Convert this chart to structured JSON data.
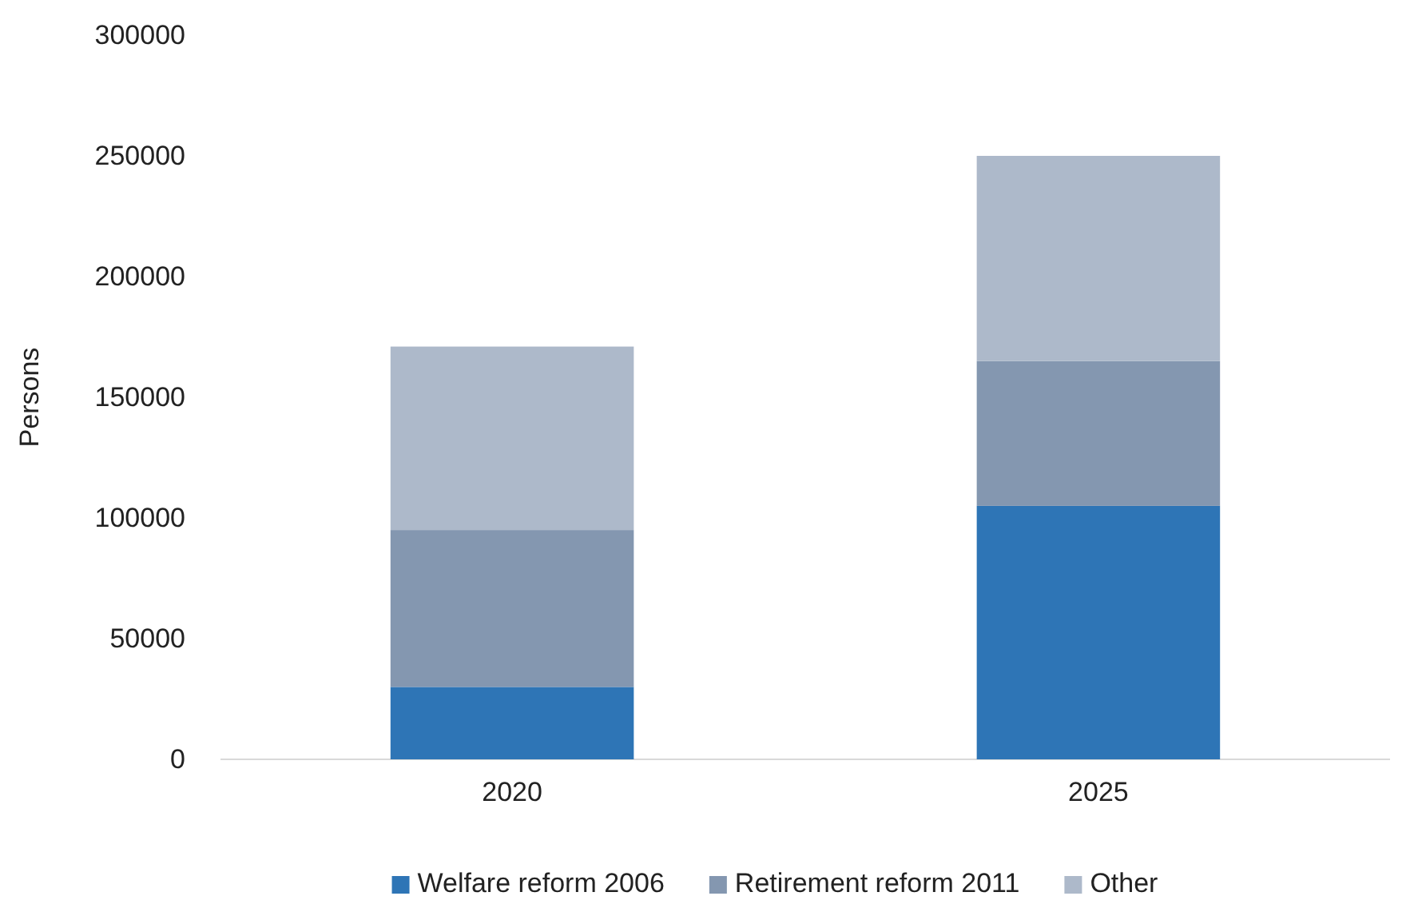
{
  "chart_data": {
    "type": "bar",
    "stacked": true,
    "ylabel": "Persons",
    "categories": [
      "2020",
      "2025"
    ],
    "series": [
      {
        "name": "Welfare reform 2006",
        "color": "#2e75b6",
        "values": [
          30000,
          105000
        ]
      },
      {
        "name": "Retirement reform 2011",
        "color": "#8497b0",
        "values": [
          65000,
          60000
        ]
      },
      {
        "name": "Other",
        "color": "#adb9ca",
        "values": [
          76000,
          85000
        ]
      }
    ],
    "ylim": [
      0,
      300000
    ],
    "yticks": [
      0,
      50000,
      100000,
      150000,
      200000,
      250000,
      300000
    ],
    "grid": false,
    "legend": "bottom"
  }
}
